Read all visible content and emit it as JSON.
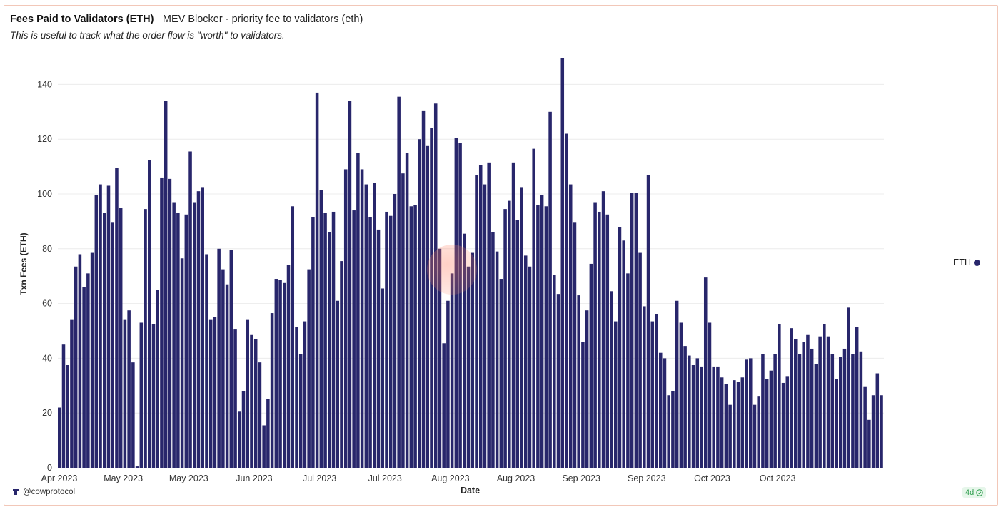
{
  "header": {
    "title": "Fees Paid to Validators (ETH)",
    "query_name": "MEV Blocker - priority fee to validators (eth)",
    "subtitle": "This is useful to track what the order flow is \"worth\" to validators."
  },
  "footer": {
    "author": "@cowprotocol",
    "age_badge": "4d"
  },
  "colors": {
    "bar": "#28266b",
    "grid": "#ececec",
    "badge_green": "#2e9e4d"
  },
  "icons": {
    "author": "cow-icon",
    "badge": "check-circle-icon"
  },
  "chart_data": {
    "type": "bar",
    "xlabel": "Date",
    "ylabel": "Txn Fees (ETH)",
    "ylim": [
      0,
      150
    ],
    "yticks": [
      0,
      20,
      40,
      60,
      80,
      100,
      120,
      140
    ],
    "grid": true,
    "legend": {
      "placement": "right",
      "entries": [
        "ETH"
      ]
    },
    "x_tick_labels": [
      {
        "label": "Apr 2023",
        "index": 0
      },
      {
        "label": "May 2023",
        "index": 16
      },
      {
        "label": "May 2023",
        "index": 32
      },
      {
        "label": "Jun 2023",
        "index": 48
      },
      {
        "label": "Jul 2023",
        "index": 64
      },
      {
        "label": "Jul 2023",
        "index": 80
      },
      {
        "label": "Aug 2023",
        "index": 96
      },
      {
        "label": "Aug 2023",
        "index": 112
      },
      {
        "label": "Sep 2023",
        "index": 128
      },
      {
        "label": "Sep 2023",
        "index": 144
      },
      {
        "label": "Oct 2023",
        "index": 160
      },
      {
        "label": "Oct 2023",
        "index": 176
      }
    ],
    "series": [
      {
        "name": "ETH",
        "values": [
          22,
          45,
          37.5,
          54,
          73.5,
          78,
          66,
          71,
          78.5,
          99.5,
          103.5,
          93,
          103,
          89.5,
          109.5,
          95,
          54,
          57.5,
          38.5,
          0.5,
          53,
          94.5,
          112.5,
          52.5,
          65,
          106,
          134,
          105.5,
          97,
          93,
          76.5,
          92.5,
          115.5,
          97,
          101,
          102.5,
          78,
          54,
          55,
          80,
          72.5,
          67,
          79.5,
          50.5,
          20.5,
          28,
          54,
          48.5,
          47,
          38.5,
          15.5,
          25,
          56.5,
          69,
          68.5,
          67.5,
          74,
          95.5,
          51.5,
          41.5,
          53.5,
          72.5,
          91.5,
          137,
          101.5,
          93,
          86,
          93.5,
          61,
          75.5,
          109,
          134,
          94,
          115,
          109,
          103.5,
          91.5,
          104,
          87,
          65.5,
          93.5,
          92,
          100,
          135.5,
          107.5,
          115,
          95.5,
          96,
          120,
          130.5,
          117.5,
          124,
          133,
          80,
          45.5,
          61,
          71,
          120.5,
          118.5,
          85.5,
          73.5,
          78.5,
          107,
          110.5,
          103.5,
          111.5,
          86,
          79,
          69,
          94.5,
          97.5,
          111.5,
          90.5,
          102.5,
          77.5,
          73.5,
          116.5,
          96,
          99.5,
          95.5,
          130,
          70.5,
          63.5,
          149.5,
          122,
          103.5,
          89.5,
          63,
          46,
          57.5,
          74.5,
          97,
          93.5,
          101,
          92.5,
          64.5,
          53.5,
          88,
          83,
          71,
          100.5,
          100.5,
          78.5,
          59,
          107,
          53.5,
          56,
          42,
          40,
          26.5,
          28,
          61,
          53,
          44.5,
          41,
          37.5,
          40,
          37,
          69.5,
          53,
          37,
          37,
          33,
          30.5,
          23,
          32,
          31.5,
          33,
          39.5,
          40,
          23,
          26,
          41.5,
          32.5,
          35.5,
          41.5,
          52.5,
          31,
          33.5,
          51,
          47,
          41.5,
          46,
          48.5,
          43.5,
          38,
          48,
          52.5,
          48,
          41.5,
          32.5,
          40.5,
          43.5,
          58.5,
          41.5,
          51.5,
          42.5,
          29.5,
          17.5,
          26.5,
          34.5,
          26.5
        ]
      }
    ]
  }
}
